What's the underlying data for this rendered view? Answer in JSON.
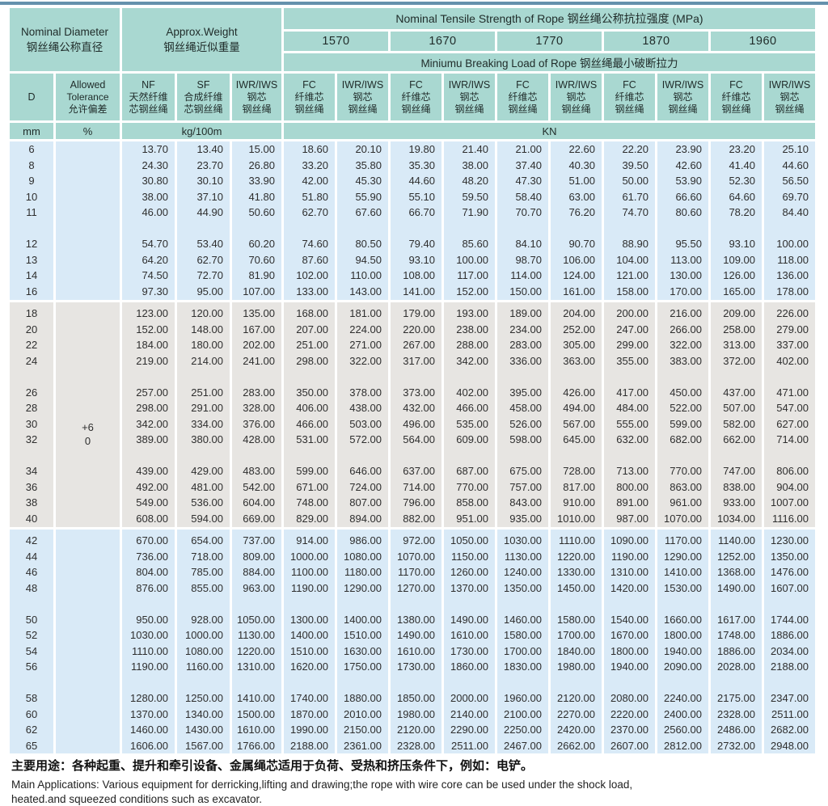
{
  "colors": {
    "accent_stripe": "#6591ad",
    "header_teal": "#a9d8d1",
    "section_blue": "#d9eaf7",
    "section_grey": "#e7e5e2"
  },
  "header": {
    "nominal_diameter_en": "Nominal Diameter",
    "nominal_diameter_cn": "钢丝绳公称直径",
    "approx_weight_en": "Approx.Weight",
    "approx_weight_cn": "钢丝绳近似重量",
    "tensile_title": "Nominal Tensile Strength of Rope 钢丝绳公称抗拉强度 (MPa)",
    "grades": [
      "1570",
      "1670",
      "1770",
      "1870",
      "1960"
    ],
    "breaking_title": "Miniumu Breaking Load of Rope 钢丝绳最小破断拉力",
    "col_headers": [
      [
        "D"
      ],
      [
        "Allowed",
        "Tolerance",
        "允许偏差"
      ],
      [
        "NF",
        "天然纤维",
        "芯钢丝绳"
      ],
      [
        "SF",
        "合成纤维",
        "芯钢丝绳"
      ],
      [
        "IWR/IWS",
        "钢芯",
        "钢丝绳"
      ],
      [
        "FC",
        "纤维芯",
        "钢丝绳"
      ],
      [
        "IWR/IWS",
        "钢芯",
        "钢丝绳"
      ],
      [
        "FC",
        "纤维芯",
        "钢丝绳"
      ],
      [
        "IWR/IWS",
        "钢芯",
        "钢丝绳"
      ],
      [
        "FC",
        "纤维芯",
        "钢丝绳"
      ],
      [
        "IWR/IWS",
        "钢芯",
        "钢丝绳"
      ],
      [
        "FC",
        "纤维芯",
        "钢丝绳"
      ],
      [
        "IWR/IWS",
        "钢芯",
        "钢丝绳"
      ],
      [
        "FC",
        "纤维芯",
        "钢丝绳"
      ],
      [
        "IWR/IWS",
        "钢芯",
        "钢丝绳"
      ]
    ],
    "units": {
      "mm": "mm",
      "percent": "%",
      "kg": "kg/100m",
      "kn": "KN"
    }
  },
  "tolerance": {
    "plus": "+6",
    "zero": "0"
  },
  "sections": [
    {
      "bg": "blue",
      "rows": [
        [
          "6",
          "13.70",
          "13.40",
          "15.00",
          "18.60",
          "20.10",
          "19.80",
          "21.40",
          "21.00",
          "22.60",
          "22.20",
          "23.90",
          "23.20",
          "25.10"
        ],
        [
          "8",
          "24.30",
          "23.70",
          "26.80",
          "33.20",
          "35.80",
          "35.30",
          "38.00",
          "37.40",
          "40.30",
          "39.50",
          "42.60",
          "41.40",
          "44.60"
        ],
        [
          "9",
          "30.80",
          "30.10",
          "33.90",
          "42.00",
          "45.30",
          "44.60",
          "48.20",
          "47.30",
          "51.00",
          "50.00",
          "53.90",
          "52.30",
          "56.50"
        ],
        [
          "10",
          "38.00",
          "37.10",
          "41.80",
          "51.80",
          "55.90",
          "55.10",
          "59.50",
          "58.40",
          "63.00",
          "61.70",
          "66.60",
          "64.60",
          "69.70"
        ],
        [
          "11",
          "46.00",
          "44.90",
          "50.60",
          "62.70",
          "67.60",
          "66.70",
          "71.90",
          "70.70",
          "76.20",
          "74.70",
          "80.60",
          "78.20",
          "84.40"
        ],
        null,
        [
          "12",
          "54.70",
          "53.40",
          "60.20",
          "74.60",
          "80.50",
          "79.40",
          "85.60",
          "84.10",
          "90.70",
          "88.90",
          "95.50",
          "93.10",
          "100.00"
        ],
        [
          "13",
          "64.20",
          "62.70",
          "70.60",
          "87.60",
          "94.50",
          "93.10",
          "100.00",
          "98.70",
          "106.00",
          "104.00",
          "113.00",
          "109.00",
          "118.00"
        ],
        [
          "14",
          "74.50",
          "72.70",
          "81.90",
          "102.00",
          "110.00",
          "108.00",
          "117.00",
          "114.00",
          "124.00",
          "121.00",
          "130.00",
          "126.00",
          "136.00"
        ],
        [
          "16",
          "97.30",
          "95.00",
          "107.00",
          "133.00",
          "143.00",
          "141.00",
          "152.00",
          "150.00",
          "161.00",
          "158.00",
          "170.00",
          "165.00",
          "178.00"
        ]
      ]
    },
    {
      "bg": "grey",
      "rows": [
        [
          "18",
          "123.00",
          "120.00",
          "135.00",
          "168.00",
          "181.00",
          "179.00",
          "193.00",
          "189.00",
          "204.00",
          "200.00",
          "216.00",
          "209.00",
          "226.00"
        ],
        [
          "20",
          "152.00",
          "148.00",
          "167.00",
          "207.00",
          "224.00",
          "220.00",
          "238.00",
          "234.00",
          "252.00",
          "247.00",
          "266.00",
          "258.00",
          "279.00"
        ],
        [
          "22",
          "184.00",
          "180.00",
          "202.00",
          "251.00",
          "271.00",
          "267.00",
          "288.00",
          "283.00",
          "305.00",
          "299.00",
          "322.00",
          "313.00",
          "337.00"
        ],
        [
          "24",
          "219.00",
          "214.00",
          "241.00",
          "298.00",
          "322.00",
          "317.00",
          "342.00",
          "336.00",
          "363.00",
          "355.00",
          "383.00",
          "372.00",
          "402.00"
        ],
        null,
        [
          "26",
          "257.00",
          "251.00",
          "283.00",
          "350.00",
          "378.00",
          "373.00",
          "402.00",
          "395.00",
          "426.00",
          "417.00",
          "450.00",
          "437.00",
          "471.00"
        ],
        [
          "28",
          "298.00",
          "291.00",
          "328.00",
          "406.00",
          "438.00",
          "432.00",
          "466.00",
          "458.00",
          "494.00",
          "484.00",
          "522.00",
          "507.00",
          "547.00"
        ],
        [
          "30",
          "342.00",
          "334.00",
          "376.00",
          "466.00",
          "503.00",
          "496.00",
          "535.00",
          "526.00",
          "567.00",
          "555.00",
          "599.00",
          "582.00",
          "627.00"
        ],
        [
          "32",
          "389.00",
          "380.00",
          "428.00",
          "531.00",
          "572.00",
          "564.00",
          "609.00",
          "598.00",
          "645.00",
          "632.00",
          "682.00",
          "662.00",
          "714.00"
        ],
        null,
        [
          "34",
          "439.00",
          "429.00",
          "483.00",
          "599.00",
          "646.00",
          "637.00",
          "687.00",
          "675.00",
          "728.00",
          "713.00",
          "770.00",
          "747.00",
          "806.00"
        ],
        [
          "36",
          "492.00",
          "481.00",
          "542.00",
          "671.00",
          "724.00",
          "714.00",
          "770.00",
          "757.00",
          "817.00",
          "800.00",
          "863.00",
          "838.00",
          "904.00"
        ],
        [
          "38",
          "549.00",
          "536.00",
          "604.00",
          "748.00",
          "807.00",
          "796.00",
          "858.00",
          "843.00",
          "910.00",
          "891.00",
          "961.00",
          "933.00",
          "1007.00"
        ],
        [
          "40",
          "608.00",
          "594.00",
          "669.00",
          "829.00",
          "894.00",
          "882.00",
          "951.00",
          "935.00",
          "1010.00",
          "987.00",
          "1070.00",
          "1034.00",
          "1116.00"
        ]
      ]
    },
    {
      "bg": "blue",
      "rows": [
        [
          "42",
          "670.00",
          "654.00",
          "737.00",
          "914.00",
          "986.00",
          "972.00",
          "1050.00",
          "1030.00",
          "1110.00",
          "1090.00",
          "1170.00",
          "1140.00",
          "1230.00"
        ],
        [
          "44",
          "736.00",
          "718.00",
          "809.00",
          "1000.00",
          "1080.00",
          "1070.00",
          "1150.00",
          "1130.00",
          "1220.00",
          "1190.00",
          "1290.00",
          "1252.00",
          "1350.00"
        ],
        [
          "46",
          "804.00",
          "785.00",
          "884.00",
          "1100.00",
          "1180.00",
          "1170.00",
          "1260.00",
          "1240.00",
          "1330.00",
          "1310.00",
          "1410.00",
          "1368.00",
          "1476.00"
        ],
        [
          "48",
          "876.00",
          "855.00",
          "963.00",
          "1190.00",
          "1290.00",
          "1270.00",
          "1370.00",
          "1350.00",
          "1450.00",
          "1420.00",
          "1530.00",
          "1490.00",
          "1607.00"
        ],
        null,
        [
          "50",
          "950.00",
          "928.00",
          "1050.00",
          "1300.00",
          "1400.00",
          "1380.00",
          "1490.00",
          "1460.00",
          "1580.00",
          "1540.00",
          "1660.00",
          "1617.00",
          "1744.00"
        ],
        [
          "52",
          "1030.00",
          "1000.00",
          "1130.00",
          "1400.00",
          "1510.00",
          "1490.00",
          "1610.00",
          "1580.00",
          "1700.00",
          "1670.00",
          "1800.00",
          "1748.00",
          "1886.00"
        ],
        [
          "54",
          "1110.00",
          "1080.00",
          "1220.00",
          "1510.00",
          "1630.00",
          "1610.00",
          "1730.00",
          "1700.00",
          "1840.00",
          "1800.00",
          "1940.00",
          "1886.00",
          "2034.00"
        ],
        [
          "56",
          "1190.00",
          "1160.00",
          "1310.00",
          "1620.00",
          "1750.00",
          "1730.00",
          "1860.00",
          "1830.00",
          "1980.00",
          "1940.00",
          "2090.00",
          "2028.00",
          "2188.00"
        ],
        null,
        [
          "58",
          "1280.00",
          "1250.00",
          "1410.00",
          "1740.00",
          "1880.00",
          "1850.00",
          "2000.00",
          "1960.00",
          "2120.00",
          "2080.00",
          "2240.00",
          "2175.00",
          "2347.00"
        ],
        [
          "60",
          "1370.00",
          "1340.00",
          "1500.00",
          "1870.00",
          "2010.00",
          "1980.00",
          "2140.00",
          "2100.00",
          "2270.00",
          "2220.00",
          "2400.00",
          "2328.00",
          "2511.00"
        ],
        [
          "62",
          "1460.00",
          "1430.00",
          "1610.00",
          "1990.00",
          "2150.00",
          "2120.00",
          "2290.00",
          "2250.00",
          "2420.00",
          "2370.00",
          "2560.00",
          "2486.00",
          "2682.00"
        ],
        [
          "65",
          "1606.00",
          "1567.00",
          "1766.00",
          "2188.00",
          "2361.00",
          "2328.00",
          "2511.00",
          "2467.00",
          "2662.00",
          "2607.00",
          "2812.00",
          "2732.00",
          "2948.00"
        ]
      ]
    }
  ],
  "footer": {
    "cn": "主要用途：各种起重、提升和牵引设备、金属绳芯适用于负荷、受热和挤压条件下，例如：电铲。",
    "en1": "Main Applications: Various equipment for derricking,lifting and drawing;the rope with wire core can be used under the shock load,",
    "en2": "heated.and squeezed conditions such as excavator."
  }
}
